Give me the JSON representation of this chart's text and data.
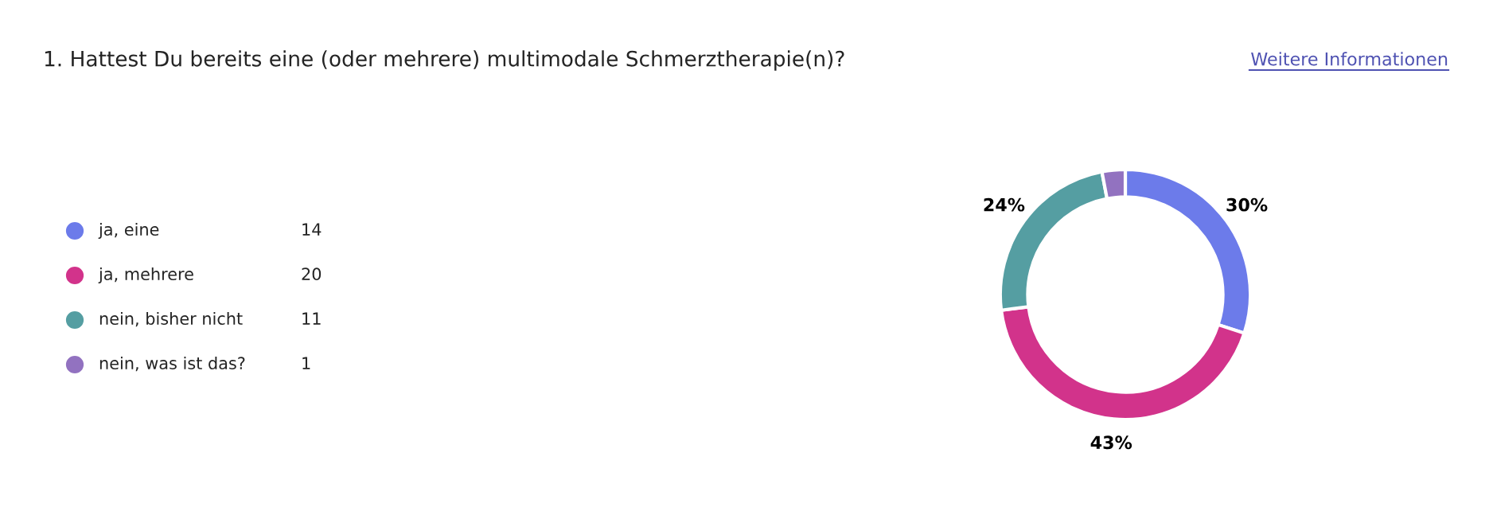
{
  "chart_data": {
    "type": "donut",
    "title": "1. Hattest Du bereits eine (oder mehrere) multimodale Schmerztherapie(n)?",
    "annotations": [
      "Weitere Informationen",
      "14",
      "20",
      "11",
      "1"
    ],
    "categories": [
      "ja, eine",
      "ja, mehrere",
      "nein, bisher nicht",
      "nein, was ist das?"
    ],
    "values": [
      30,
      43,
      24,
      3
    ],
    "colors": [
      "#6c7bea",
      "#d2338b",
      "#559ea2",
      "#9272c0"
    ],
    "value_labels": [
      "30%",
      "43%",
      "24%",
      null
    ],
    "legend": "left"
  }
}
